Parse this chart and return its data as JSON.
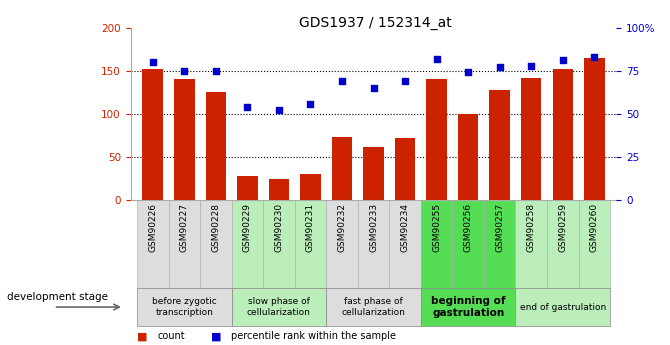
{
  "title": "GDS1937 / 152314_at",
  "samples": [
    "GSM90226",
    "GSM90227",
    "GSM90228",
    "GSM90229",
    "GSM90230",
    "GSM90231",
    "GSM90232",
    "GSM90233",
    "GSM90234",
    "GSM90255",
    "GSM90256",
    "GSM90257",
    "GSM90258",
    "GSM90259",
    "GSM90260"
  ],
  "counts": [
    152,
    140,
    125,
    28,
    25,
    30,
    73,
    62,
    72,
    140,
    100,
    128,
    142,
    152,
    165
  ],
  "percentile": [
    80,
    75,
    75,
    54,
    52,
    56,
    69,
    65,
    69,
    82,
    74,
    77,
    78,
    81,
    83
  ],
  "left_ylim": [
    0,
    200
  ],
  "right_ylim": [
    0,
    100
  ],
  "left_yticks": [
    0,
    50,
    100,
    150,
    200
  ],
  "right_yticks": [
    0,
    25,
    50,
    75,
    100
  ],
  "right_yticklabels": [
    "0",
    "25",
    "50",
    "75",
    "100%"
  ],
  "bar_color": "#cc2200",
  "dot_color": "#0000cc",
  "stage_groups": [
    {
      "label": "before zygotic\ntranscription",
      "indices": [
        0,
        1,
        2
      ],
      "color": "#dddddd"
    },
    {
      "label": "slow phase of\ncellularization",
      "indices": [
        3,
        4,
        5
      ],
      "color": "#bbeebb"
    },
    {
      "label": "fast phase of\ncellularization",
      "indices": [
        6,
        7,
        8
      ],
      "color": "#dddddd"
    },
    {
      "label": "beginning of\ngastrulation",
      "indices": [
        9,
        10,
        11
      ],
      "color": "#55dd55"
    },
    {
      "label": "end of gastrulation",
      "indices": [
        12,
        13,
        14
      ],
      "color": "#bbeebb"
    }
  ],
  "legend_label_count": "count",
  "legend_label_pct": "percentile rank within the sample",
  "development_stage_label": "development stage",
  "hgrid_values": [
    50,
    100,
    150
  ]
}
